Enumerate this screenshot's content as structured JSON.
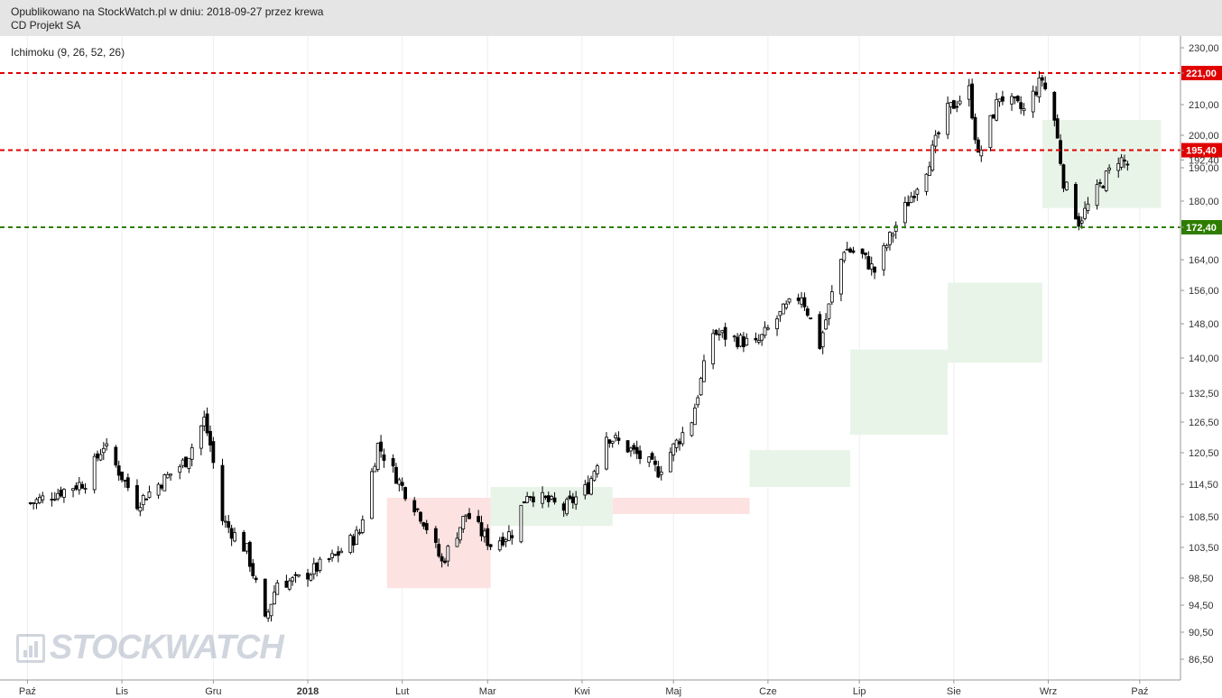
{
  "header": {
    "line1": "Opublikowano na StockWatch.pl w dniu: 2018-09-27 przez krewa",
    "line2": "CD Projekt SA"
  },
  "indicator_label": "Ichimoku (9, 26, 52, 26)",
  "watermark": "STOCKWATCH",
  "colors": {
    "resistance": "#e00000",
    "support": "#2e7d00",
    "cloud_bull": "#e8f4e8",
    "cloud_bear": "#fde2e2",
    "candle": "#000000"
  },
  "chart_data": {
    "type": "candlestick",
    "y_axis_ticks": [
      "230,00",
      "221,00",
      "210,00",
      "200,00",
      "195,40",
      "192,40",
      "190,00",
      "180,00",
      "172,40",
      "164,00",
      "156,00",
      "148,00",
      "140,00",
      "132,50",
      "126,50",
      "120,50",
      "114,50",
      "108,50",
      "103,50",
      "98,50",
      "94,50",
      "90,50",
      "86,50"
    ],
    "x_axis_labels": [
      "Paź",
      "Lis",
      "Gru",
      "2018",
      "Lut",
      "Mar",
      "Kwi",
      "Maj",
      "Cze",
      "Lip",
      "Sie",
      "Wrz",
      "Paź"
    ],
    "levels": [
      {
        "value": 221.0,
        "label": "221,00",
        "color": "red"
      },
      {
        "value": 195.4,
        "label": "195,40",
        "color": "red"
      },
      {
        "value": 172.4,
        "label": "172,40",
        "color": "green"
      }
    ],
    "price_path": [
      [
        "2017-10-02",
        111
      ],
      [
        "2017-10-20",
        115
      ],
      [
        "2017-10-26",
        122
      ],
      [
        "2017-11-06",
        111
      ],
      [
        "2017-11-22",
        119
      ],
      [
        "2017-11-28",
        127
      ],
      [
        "2017-11-30",
        122
      ],
      [
        "2017-12-04",
        108
      ],
      [
        "2017-12-12",
        103
      ],
      [
        "2017-12-18",
        92
      ],
      [
        "2017-12-22",
        98
      ],
      [
        "2017-12-28",
        98
      ],
      [
        "2018-01-10",
        102
      ],
      [
        "2018-01-18",
        106
      ],
      [
        "2018-01-24",
        122
      ],
      [
        "2018-02-01",
        114
      ],
      [
        "2018-02-08",
        108
      ],
      [
        "2018-02-14",
        101
      ],
      [
        "2018-02-22",
        109
      ],
      [
        "2018-03-02",
        104
      ],
      [
        "2018-03-09",
        106
      ],
      [
        "2018-03-14",
        113
      ],
      [
        "2018-03-26",
        110
      ],
      [
        "2018-04-03",
        114
      ],
      [
        "2018-04-09",
        124
      ],
      [
        "2018-04-17",
        121
      ],
      [
        "2018-04-26",
        117
      ],
      [
        "2018-05-07",
        127
      ],
      [
        "2018-05-14",
        146
      ],
      [
        "2018-05-28",
        143
      ],
      [
        "2018-06-06",
        151
      ],
      [
        "2018-06-12",
        155
      ],
      [
        "2018-06-18",
        143
      ],
      [
        "2018-06-26",
        167
      ],
      [
        "2018-07-02",
        165
      ],
      [
        "2018-07-06",
        161
      ],
      [
        "2018-07-13",
        173
      ],
      [
        "2018-07-23",
        190
      ],
      [
        "2018-07-30",
        208
      ],
      [
        "2018-08-06",
        215
      ],
      [
        "2018-08-09",
        193
      ],
      [
        "2018-08-16",
        213
      ],
      [
        "2018-08-24",
        208
      ],
      [
        "2018-08-30",
        219
      ],
      [
        "2018-09-03",
        205
      ],
      [
        "2018-09-06",
        186
      ],
      [
        "2018-09-11",
        174
      ],
      [
        "2018-09-17",
        183
      ],
      [
        "2018-09-24",
        193
      ],
      [
        "2018-09-27",
        191
      ]
    ],
    "ichimoku_cloud_bear": [
      {
        "start": "2018-01-27",
        "end": "2018-03-02",
        "top": 112,
        "bottom": 97
      },
      {
        "start": "2018-04-11",
        "end": "2018-05-26",
        "top": 112,
        "bottom": 109
      }
    ],
    "ichimoku_cloud_bull": [
      {
        "start": "2018-03-02",
        "end": "2018-04-11",
        "top": 114,
        "bottom": 107
      },
      {
        "start": "2018-05-26",
        "end": "2018-06-28",
        "top": 121,
        "bottom": 114
      },
      {
        "start": "2018-06-28",
        "end": "2018-07-30",
        "top": 142,
        "bottom": 124
      },
      {
        "start": "2018-07-30",
        "end": "2018-08-30",
        "top": 158,
        "bottom": 139
      },
      {
        "start": "2018-08-30",
        "end": "2018-10-08",
        "top": 205,
        "bottom": 178
      }
    ]
  }
}
